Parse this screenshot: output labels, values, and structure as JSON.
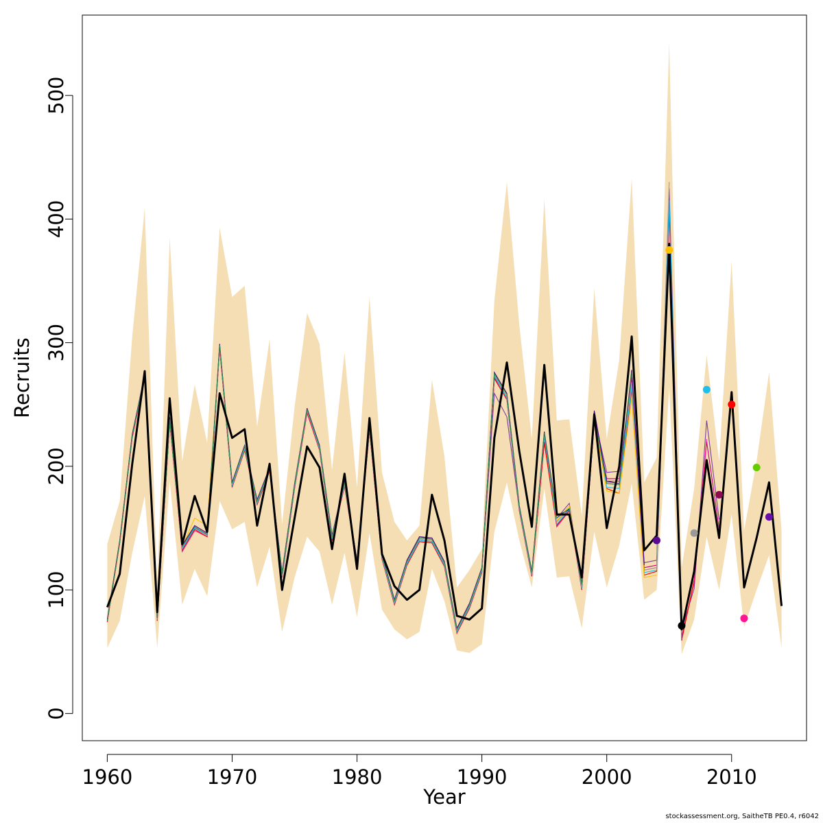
{
  "chart_data": {
    "type": "line",
    "title": "",
    "xlabel": "Year",
    "ylabel": "Recruits",
    "xlim": [
      1958,
      2016
    ],
    "ylim": [
      -22,
      565
    ],
    "xticks": [
      1960,
      1970,
      1980,
      1990,
      2000,
      2010
    ],
    "yticks": [
      0,
      100,
      200,
      300,
      400,
      500
    ],
    "grid": false,
    "legend": "none",
    "band_color": "#F5DEB3",
    "main_color": "#000000",
    "years": [
      1960,
      1961,
      1962,
      1963,
      1964,
      1965,
      1966,
      1967,
      1968,
      1969,
      1970,
      1971,
      1972,
      1973,
      1974,
      1975,
      1976,
      1977,
      1978,
      1979,
      1980,
      1981,
      1982,
      1983,
      1984,
      1985,
      1986,
      1987,
      1988,
      1989,
      1990,
      1991,
      1992,
      1993,
      1994,
      1995,
      1996,
      1997,
      1998,
      1999,
      2000,
      2001,
      2002,
      2003,
      2004,
      2005,
      2006,
      2007,
      2008,
      2009,
      2010,
      2011,
      2012,
      2013,
      2014
    ],
    "band_upper": [
      137,
      172,
      305,
      409,
      103,
      385,
      204,
      266,
      219,
      393,
      337,
      346,
      232,
      303,
      153,
      248,
      324,
      299,
      197,
      292,
      183,
      337,
      195,
      155,
      140,
      152,
      270,
      208,
      102,
      116,
      133,
      334,
      430,
      314,
      222,
      416,
      237,
      238,
      160,
      344,
      222,
      286,
      433,
      187,
      207,
      543,
      118,
      182,
      290,
      204,
      366,
      148,
      204,
      276,
      148
    ],
    "band_lower": [
      53,
      75,
      130,
      176,
      53,
      188,
      88,
      117,
      95,
      172,
      149,
      155,
      102,
      135,
      66,
      110,
      143,
      131,
      88,
      130,
      78,
      146,
      84,
      68,
      60,
      66,
      117,
      91,
      51,
      49,
      56,
      147,
      187,
      140,
      102,
      182,
      110,
      111,
      69,
      147,
      102,
      136,
      186,
      92,
      100,
      264,
      48,
      76,
      143,
      100,
      161,
      70,
      100,
      128,
      53
    ],
    "main": [
      86,
      113,
      202,
      277,
      82,
      255,
      137,
      176,
      147,
      259,
      223,
      230,
      152,
      202,
      100,
      158,
      216,
      199,
      133,
      194,
      117,
      239,
      129,
      103,
      92,
      100,
      177,
      140,
      79,
      76,
      85,
      223,
      284,
      212,
      151,
      282,
      161,
      161,
      110,
      242,
      150,
      200,
      305,
      132,
      144,
      380,
      68,
      115,
      205,
      142,
      260,
      102,
      142,
      187,
      87
    ],
    "retro_series": [
      {
        "color": "#7A3F9D",
        "values": [
          74,
          140,
          226,
          273,
          78,
          240,
          135,
          150,
          145,
          298,
          186,
          216,
          172,
          198,
          114,
          185,
          246,
          216,
          143,
          187,
          124,
          232,
          129,
          91,
          124,
          143,
          141,
          122,
          68,
          88,
          116,
          259,
          240,
          165,
          114,
          224,
          158,
          170,
          103,
          240,
          195,
          196,
          272,
          122,
          124,
          425,
          68,
          101,
          237,
          157
        ]
      },
      {
        "color": "#CC0077",
        "values": [
          76,
          139,
          224,
          272,
          76,
          236,
          132,
          151,
          144,
          296,
          184,
          214,
          170,
          197,
          111,
          183,
          244,
          214,
          141,
          185,
          122,
          230,
          126,
          89,
          121,
          140,
          139,
          120,
          66,
          86,
          115,
          272,
          256,
          165,
          112,
          220,
          152,
          166,
          101,
          237,
          190,
          190,
          270,
          118,
          120,
          410,
          62,
          106,
          220,
          150
        ]
      },
      {
        "color": "#FF1493",
        "values": [
          75,
          138,
          223,
          271,
          75,
          235,
          131,
          148,
          143,
          295,
          183,
          213,
          169,
          196,
          110,
          182,
          243,
          213,
          140,
          184,
          121,
          229,
          125,
          88,
          120,
          139,
          138,
          119,
          65,
          85,
          114,
          271,
          254,
          164,
          111,
          219,
          151,
          164,
          100,
          236,
          188,
          188,
          268,
          116,
          118,
          408,
          60,
          107,
          222
        ]
      },
      {
        "color": "#FF0000",
        "values": [
          74,
          138,
          224,
          271,
          75,
          236,
          132,
          149,
          143,
          296,
          183,
          213,
          169,
          196,
          110,
          182,
          244,
          213,
          140,
          184,
          121,
          229,
          125,
          88,
          120,
          139,
          138,
          119,
          65,
          85,
          114,
          271,
          254,
          164,
          111,
          219,
          152,
          164,
          100,
          236,
          182,
          178,
          262,
          112,
          115,
          405,
          59,
          108
        ]
      },
      {
        "color": "#00BFFF",
        "values": [
          75,
          139,
          225,
          272,
          76,
          237,
          133,
          150,
          144,
          297,
          184,
          214,
          170,
          197,
          111,
          183,
          245,
          214,
          141,
          185,
          122,
          230,
          126,
          89,
          121,
          140,
          139,
          120,
          66,
          86,
          115,
          273,
          255,
          165,
          112,
          225,
          153,
          165,
          101,
          237,
          183,
          182,
          264,
          114,
          116,
          415,
          60
        ]
      },
      {
        "color": "#999999",
        "values": [
          75,
          139,
          225,
          272,
          76,
          237,
          134,
          151,
          144,
          297,
          185,
          215,
          171,
          197,
          112,
          184,
          245,
          215,
          142,
          186,
          122,
          231,
          127,
          90,
          122,
          141,
          140,
          121,
          67,
          87,
          116,
          274,
          256,
          166,
          113,
          227,
          155,
          166,
          102,
          238,
          187,
          186,
          268,
          116,
          118,
          430
        ]
      },
      {
        "color": "#FFC000",
        "values": [
          76,
          140,
          226,
          273,
          77,
          238,
          135,
          158,
          152,
          298,
          186,
          216,
          172,
          198,
          113,
          185,
          246,
          216,
          143,
          187,
          123,
          232,
          128,
          91,
          123,
          142,
          141,
          122,
          68,
          88,
          117,
          275,
          258,
          167,
          114,
          228,
          156,
          168,
          104,
          239,
          180,
          178,
          255,
          110,
          112
        ]
      },
      {
        "color": "#4B0082",
        "values": [
          76,
          140,
          226,
          274,
          77,
          239,
          136,
          152,
          146,
          299,
          187,
          217,
          173,
          199,
          114,
          186,
          247,
          217,
          144,
          188,
          124,
          233,
          129,
          92,
          124,
          143,
          142,
          123,
          69,
          89,
          118,
          276,
          259,
          168,
          115,
          228,
          160,
          165,
          105,
          245,
          188,
          186,
          278,
          120
        ]
      },
      {
        "color": "#2E8B57",
        "values": [
          75,
          139,
          225,
          273,
          77,
          238,
          135,
          151,
          145,
          298,
          186,
          216,
          172,
          198,
          113,
          185,
          246,
          216,
          143,
          187,
          123,
          232,
          128,
          91,
          123,
          142,
          141,
          122,
          68,
          88,
          117,
          275,
          258,
          167,
          114,
          227,
          158,
          166,
          104,
          240,
          186,
          185,
          276
        ]
      }
    ],
    "endpoints": [
      {
        "year": 2004,
        "value": 140,
        "color": "#5B0A91"
      },
      {
        "year": 2005,
        "value": 375,
        "color": "#FFC000"
      },
      {
        "year": 2006,
        "value": 71,
        "color": "#000000"
      },
      {
        "year": 2007,
        "value": 146,
        "color": "#999999"
      },
      {
        "year": 2008,
        "value": 262,
        "color": "#1EBFEA"
      },
      {
        "year": 2009,
        "value": 177,
        "color": "#8B0A50"
      },
      {
        "year": 2010,
        "value": 250,
        "color": "#FF0000"
      },
      {
        "year": 2011,
        "value": 77,
        "color": "#FF1493"
      },
      {
        "year": 2012,
        "value": 199,
        "color": "#66CC00"
      },
      {
        "year": 2013,
        "value": 159,
        "color": "#6A0DAD"
      }
    ]
  },
  "footer": {
    "credit": "stockassessment.org, SaitheTB  PE0.4, r6042"
  }
}
